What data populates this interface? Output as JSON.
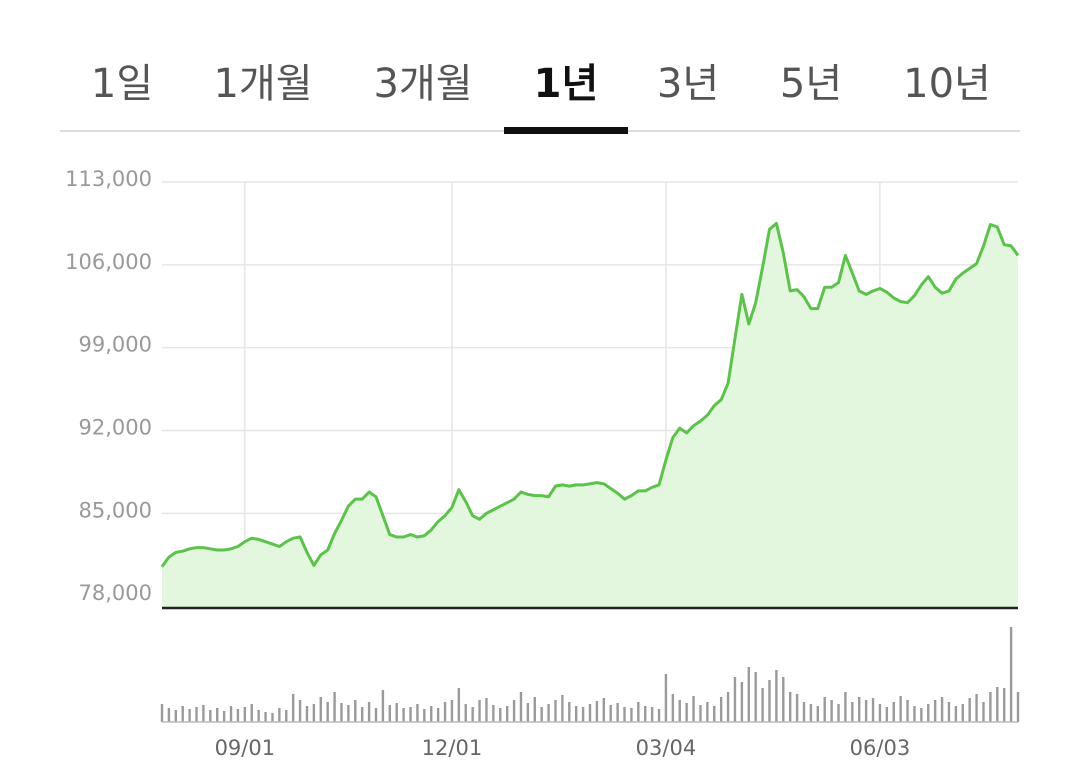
{
  "tabs": [
    "1일",
    "1개월",
    "3개월",
    "1년",
    "3년",
    "5년",
    "10년"
  ],
  "selected_tab": 3,
  "chart_data": [
    {
      "type": "area",
      "color": "#5cc24b",
      "fill": "#e3f6de",
      "ylim": [
        77000,
        113000
      ],
      "yticks": [
        {
          "value": 78000,
          "label": "78,000"
        },
        {
          "value": 85000,
          "label": "85,000"
        },
        {
          "value": 92000,
          "label": "92,000"
        },
        {
          "value": 99000,
          "label": "99,000"
        },
        {
          "value": 106000,
          "label": "106,000"
        },
        {
          "value": 113000,
          "label": "113,000"
        }
      ],
      "grid": true,
      "values": [
        80500,
        81300,
        81700,
        81800,
        82000,
        82100,
        82100,
        82000,
        81900,
        81900,
        82000,
        82200,
        82600,
        82900,
        82800,
        82600,
        82400,
        82200,
        82600,
        82900,
        83000,
        81700,
        80600,
        81500,
        81900,
        83300,
        84400,
        85600,
        86200,
        86200,
        86800,
        86400,
        84800,
        83200,
        83000,
        83000,
        83200,
        83000,
        83100,
        83600,
        84300,
        84800,
        85500,
        87000,
        86000,
        84800,
        84500,
        85000,
        85300,
        85600,
        85900,
        86200,
        86800,
        86600,
        86500,
        86500,
        86400,
        87300,
        87400,
        87300,
        87400,
        87400,
        87500,
        87600,
        87500,
        87100,
        86700,
        86200,
        86500,
        86900,
        86900,
        87200,
        87400,
        89500,
        91400,
        92200,
        91800,
        92400,
        92800,
        93300,
        94100,
        94600,
        96000,
        99800,
        103500,
        101000,
        102800,
        105800,
        109000,
        109500,
        107000,
        103800,
        103900,
        103300,
        102300,
        102300,
        104100,
        104100,
        104500,
        106800,
        105300,
        103800,
        103500,
        103800,
        104000,
        103700,
        103200,
        102900,
        102800,
        103400,
        104300,
        105000,
        104100,
        103600,
        103800,
        104800,
        105300,
        105700,
        106100,
        107600,
        109400,
        109200,
        107700,
        107600,
        106800
      ]
    },
    {
      "type": "bar",
      "color": "#9a9a9a",
      "ylim": [
        0,
        100
      ],
      "categories": [
        null,
        null,
        null,
        null,
        null,
        null,
        null,
        null,
        null,
        null,
        null,
        null,
        "09/01",
        null,
        null,
        null,
        null,
        null,
        null,
        null,
        null,
        null,
        null,
        null,
        null,
        null,
        null,
        null,
        null,
        null,
        null,
        null,
        null,
        null,
        null,
        null,
        null,
        null,
        null,
        null,
        null,
        null,
        "12/01",
        null,
        null,
        null,
        null,
        null,
        null,
        null,
        null,
        null,
        null,
        null,
        null,
        null,
        null,
        null,
        null,
        null,
        null,
        null,
        null,
        null,
        null,
        null,
        null,
        null,
        null,
        null,
        null,
        null,
        null,
        "03/04",
        null,
        null,
        null,
        null,
        null,
        null,
        null,
        null,
        null,
        null,
        null,
        null,
        null,
        null,
        null,
        null,
        null,
        null,
        null,
        null,
        null,
        null,
        null,
        null,
        null,
        null,
        null,
        null,
        null,
        null,
        "06/03",
        null,
        null,
        null,
        null,
        null,
        null,
        null,
        null,
        null,
        null,
        null,
        null,
        null,
        null,
        null,
        null,
        null,
        null,
        null,
        null
      ],
      "values": [
        18,
        14,
        12,
        16,
        13,
        15,
        17,
        12,
        14,
        11,
        16,
        13,
        15,
        18,
        12,
        10,
        9,
        14,
        12,
        28,
        22,
        16,
        18,
        25,
        20,
        30,
        19,
        17,
        22,
        15,
        20,
        14,
        32,
        17,
        19,
        14,
        15,
        18,
        13,
        16,
        14,
        20,
        22,
        34,
        18,
        15,
        22,
        24,
        17,
        14,
        16,
        22,
        30,
        19,
        25,
        15,
        18,
        22,
        27,
        20,
        16,
        15,
        18,
        21,
        24,
        17,
        19,
        15,
        14,
        20,
        16,
        15,
        13,
        48,
        28,
        22,
        19,
        26,
        17,
        20,
        16,
        25,
        30,
        45,
        40,
        55,
        50,
        34,
        42,
        52,
        45,
        30,
        28,
        20,
        18,
        16,
        25,
        22,
        18,
        30,
        20,
        25,
        22,
        24,
        18,
        15,
        20,
        26,
        22,
        16,
        14,
        18,
        22,
        25,
        20,
        16,
        18,
        24,
        28,
        20,
        30,
        35,
        34,
        95,
        30
      ]
    }
  ]
}
